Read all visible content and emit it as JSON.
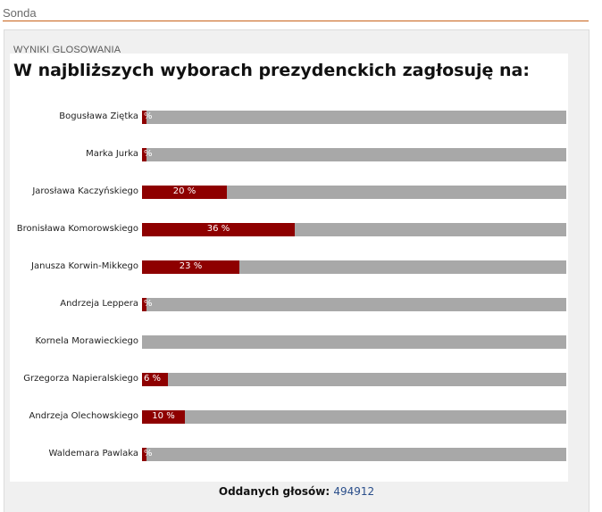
{
  "header": {
    "title": "Sonda"
  },
  "poll": {
    "section_title": "WYNIKI GLOSOWANIA",
    "question": "W najbliższych wyborach prezydenckich zagłosuję na:",
    "total_label": "Oddanych głosów:",
    "total_value": "494912"
  },
  "colors": {
    "bar_fill": "#8e0000",
    "bar_track": "#a8a8a8",
    "accent_rule": "#c8621a",
    "count_link": "#2a4e8a"
  },
  "chart_data": {
    "type": "bar",
    "orientation": "horizontal",
    "title": "W najbliższych wyborach prezydenckich zagłosuję na:",
    "categories": [
      "Bogusława Ziętka",
      "Marka Jurka",
      "Jarosława Kaczyńskiego",
      "Bronisława Komorowskiego",
      "Janusza Korwin-Mikkego",
      "Andrzeja Leppera",
      "Kornela Morawieckiego",
      "Grzegorza Napieralskiego",
      "Andrzeja Olechowskiego",
      "Waldemara Pawlaka"
    ],
    "values": [
      1,
      1,
      20,
      36,
      23,
      1,
      0,
      6,
      10,
      1
    ],
    "labels": [
      "%",
      "%",
      "20 %",
      "36 %",
      "23 %",
      "%",
      "",
      "6 %",
      "10 %",
      "%"
    ],
    "xlim": [
      0,
      100
    ],
    "unit": "%",
    "grid": false
  }
}
